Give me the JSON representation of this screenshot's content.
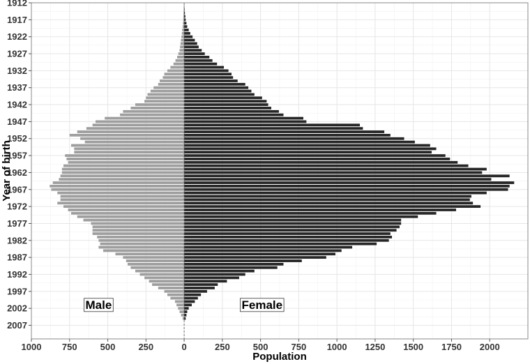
{
  "chart_data": {
    "type": "bar",
    "orientation": "horizontal-population-pyramid",
    "xlabel": "Population",
    "ylabel": "Year of birth",
    "xlim": [
      -1000,
      2250
    ],
    "ylim": [
      1912,
      2011
    ],
    "x_ticks": [
      -1000,
      -750,
      -500,
      -250,
      0,
      250,
      500,
      750,
      1000,
      1250,
      1500,
      1750,
      2000
    ],
    "x_tick_labels": [
      "1000",
      "750",
      "500",
      "250",
      "0",
      "250",
      "500",
      "750",
      "1000",
      "1250",
      "1500",
      "1750",
      "2000"
    ],
    "y_ticks": [
      1912,
      1917,
      1922,
      1927,
      1932,
      1937,
      1942,
      1947,
      1952,
      1957,
      1962,
      1967,
      1972,
      1977,
      1982,
      1987,
      1992,
      1997,
      2002,
      2007
    ],
    "y_tick_labels": [
      "1912",
      "1917",
      "1922",
      "1927",
      "1932",
      "1937",
      "1942",
      "1947",
      "1952",
      "1957",
      "1962",
      "1967",
      "1972",
      "1977",
      "1982",
      "1987",
      "1992",
      "1997",
      "2002",
      "2007"
    ],
    "grid": true,
    "years": [
      1913,
      1914,
      1915,
      1916,
      1917,
      1918,
      1919,
      1920,
      1921,
      1922,
      1923,
      1924,
      1925,
      1926,
      1927,
      1928,
      1929,
      1930,
      1931,
      1932,
      1933,
      1934,
      1935,
      1936,
      1937,
      1938,
      1939,
      1940,
      1941,
      1942,
      1943,
      1944,
      1945,
      1946,
      1947,
      1948,
      1949,
      1950,
      1951,
      1952,
      1953,
      1954,
      1955,
      1956,
      1957,
      1958,
      1959,
      1960,
      1961,
      1962,
      1963,
      1964,
      1965,
      1966,
      1967,
      1968,
      1969,
      1970,
      1971,
      1972,
      1973,
      1974,
      1975,
      1976,
      1977,
      1978,
      1979,
      1980,
      1981,
      1982,
      1983,
      1984,
      1985,
      1986,
      1987,
      1988,
      1989,
      1990,
      1991,
      1992,
      1993,
      1994,
      1995,
      1996,
      1997,
      1998,
      1999,
      2000,
      2001,
      2002,
      2003,
      2004,
      2005
    ],
    "series": [
      {
        "name": "Male",
        "color": "#9e9e9e",
        "values": [
          2,
          3,
          4,
          5,
          6,
          8,
          10,
          13,
          15,
          18,
          21,
          24,
          27,
          30,
          38,
          46,
          57,
          70,
          90,
          110,
          130,
          140,
          160,
          170,
          200,
          220,
          240,
          250,
          260,
          320,
          350,
          400,
          420,
          520,
          580,
          600,
          640,
          700,
          750,
          680,
          650,
          740,
          720,
          720,
          780,
          770,
          760,
          790,
          800,
          800,
          810,
          820,
          860,
          880,
          870,
          830,
          810,
          810,
          830,
          790,
          760,
          740,
          700,
          660,
          610,
          600,
          600,
          600,
          570,
          560,
          550,
          560,
          530,
          450,
          400,
          380,
          370,
          350,
          320,
          290,
          260,
          230,
          210,
          170,
          130,
          110,
          90,
          60,
          50,
          40,
          30,
          20,
          10
        ]
      },
      {
        "name": "Female",
        "color": "#262626",
        "values": [
          1,
          3,
          5,
          8,
          10,
          15,
          20,
          30,
          40,
          55,
          70,
          85,
          95,
          115,
          135,
          165,
          185,
          215,
          260,
          290,
          310,
          320,
          350,
          400,
          420,
          440,
          460,
          510,
          540,
          550,
          570,
          620,
          650,
          780,
          800,
          1150,
          1170,
          1310,
          1350,
          1440,
          1510,
          1610,
          1650,
          1620,
          1710,
          1740,
          1790,
          1860,
          1980,
          1950,
          2130,
          2010,
          2160,
          2130,
          2120,
          1980,
          1880,
          1870,
          1890,
          1940,
          1780,
          1650,
          1530,
          1420,
          1420,
          1410,
          1390,
          1350,
          1360,
          1340,
          1260,
          1100,
          1030,
          990,
          930,
          770,
          650,
          610,
          460,
          400,
          360,
          280,
          220,
          200,
          150,
          110,
          90,
          70,
          50,
          30,
          20,
          15,
          10
        ]
      }
    ],
    "annotations": [
      {
        "text": "Male",
        "x": -560,
        "y": 2001
      },
      {
        "text": "Female",
        "x": 510,
        "y": 2001
      }
    ]
  }
}
